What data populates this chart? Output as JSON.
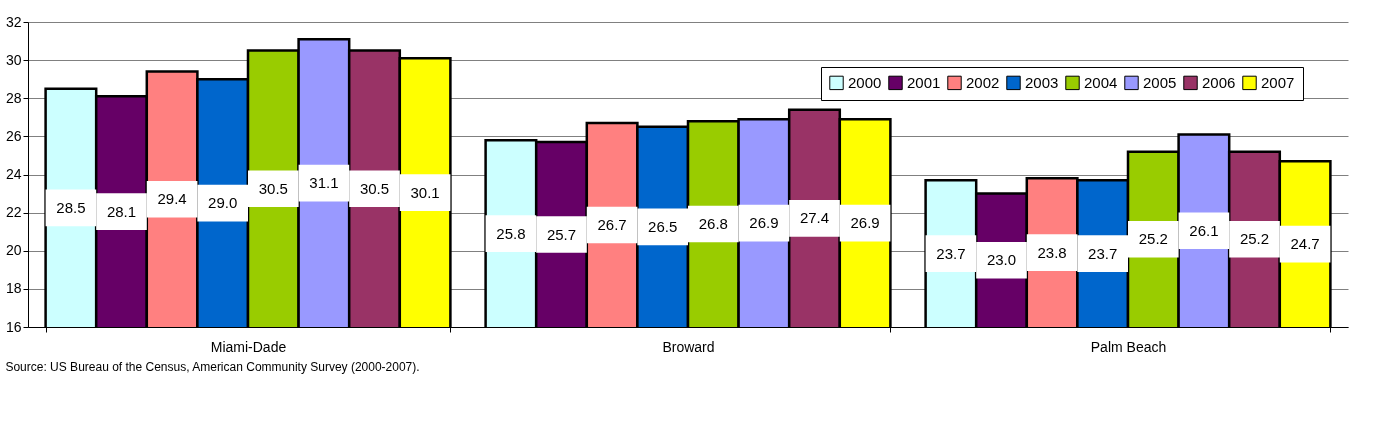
{
  "chart_data": {
    "type": "bar",
    "categories": [
      "Miami-Dade",
      "Broward",
      "Palm Beach"
    ],
    "series": [
      {
        "name": "2000",
        "color": "#ccffff",
        "values": [
          28.5,
          25.8,
          23.7
        ]
      },
      {
        "name": "2001",
        "color": "#660066",
        "values": [
          28.1,
          25.7,
          23.0
        ]
      },
      {
        "name": "2002",
        "color": "#ff8080",
        "values": [
          29.4,
          26.7,
          23.8
        ]
      },
      {
        "name": "2003",
        "color": "#0066cc",
        "values": [
          29.0,
          26.5,
          23.7
        ]
      },
      {
        "name": "2004",
        "color": "#99cc00",
        "values": [
          30.5,
          26.8,
          25.2
        ]
      },
      {
        "name": "2005",
        "color": "#9999ff",
        "values": [
          31.1,
          26.9,
          26.1
        ]
      },
      {
        "name": "2006",
        "color": "#993366",
        "values": [
          30.5,
          27.4,
          25.2
        ]
      },
      {
        "name": "2007",
        "color": "#ffff00",
        "values": [
          30.1,
          26.9,
          24.7
        ]
      }
    ],
    "value_labels": [
      [
        "28.5",
        "25.8",
        "23.7"
      ],
      [
        "28.1",
        "25.7",
        "23.0"
      ],
      [
        "29.4",
        "26.7",
        "23.8"
      ],
      [
        "29.0",
        "26.5",
        "23.7"
      ],
      [
        "30.5",
        "26.8",
        "25.2"
      ],
      [
        "31.1",
        "26.9",
        "26.1"
      ],
      [
        "30.5",
        "27.4",
        "25.2"
      ],
      [
        "30.1",
        "26.9",
        "24.7"
      ]
    ],
    "ylim": [
      16,
      32
    ],
    "yticks": [
      16,
      18,
      20,
      22,
      24,
      26,
      28,
      30,
      32
    ],
    "grid": "y",
    "legend": "top right",
    "annotations": [
      "Source:  US Bureau of the Census, American Community Survey (2000-2007)."
    ]
  }
}
